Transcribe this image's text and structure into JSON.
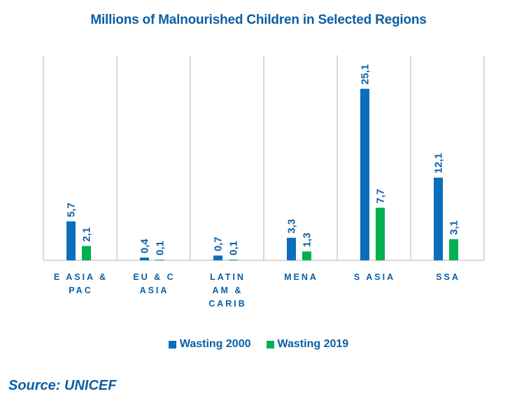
{
  "chart_data": {
    "type": "bar",
    "title": "Millions of Malnourished Children in Selected Regions",
    "categories": [
      [
        "E ASIA &",
        "PAC"
      ],
      [
        "EU & C",
        "ASIA"
      ],
      [
        "LATIN",
        "AM &",
        "CARIB"
      ],
      [
        "MENA"
      ],
      [
        "S ASIA"
      ],
      [
        "SSA"
      ]
    ],
    "series": [
      {
        "name": "Wasting 2000",
        "color": "#0a6ebd",
        "values": [
          5.7,
          0.4,
          0.7,
          3.3,
          25.1,
          12.1
        ],
        "labels": [
          "5,7",
          "0,4",
          "0,7",
          "3,3",
          "25,1",
          "12,1"
        ]
      },
      {
        "name": "Wasting 2019",
        "color": "#00b050",
        "values": [
          2.1,
          0.1,
          0.1,
          1.3,
          7.7,
          3.1
        ],
        "labels": [
          "2,1",
          "0,1",
          "0,1",
          "1,3",
          "7,7",
          "3,1"
        ]
      }
    ],
    "xlabel": "",
    "ylabel": "",
    "ylim": [
      0,
      30
    ],
    "grid": "vertical category separators",
    "legend": "bottom-center",
    "data_label_orientation": "rotated-vertical",
    "decimal_separator": ","
  },
  "source": "Source: UNICEF"
}
